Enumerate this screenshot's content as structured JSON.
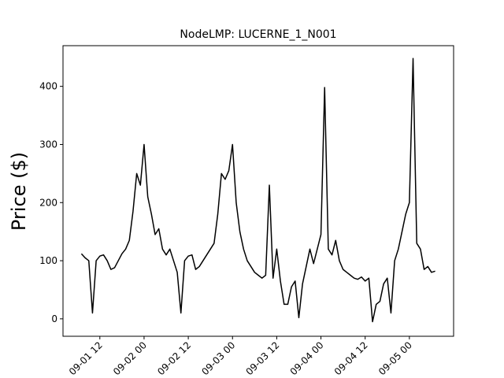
{
  "chart_data": {
    "type": "line",
    "title": "NodeLMP: LUCERNE_1_N001",
    "y_label": "Price ($)",
    "x": [
      "09-01 07",
      "09-01 08",
      "09-01 09",
      "09-01 10",
      "09-01 11",
      "09-01 12",
      "09-01 13",
      "09-01 14",
      "09-01 15",
      "09-01 16",
      "09-01 17",
      "09-01 18",
      "09-01 19",
      "09-01 20",
      "09-01 21",
      "09-01 22",
      "09-01 23",
      "09-02 00",
      "09-02 01",
      "09-02 02",
      "09-02 03",
      "09-02 04",
      "09-02 05",
      "09-02 06",
      "09-02 07",
      "09-02 08",
      "09-02 09",
      "09-02 10",
      "09-02 11",
      "09-02 12",
      "09-02 13",
      "09-02 14",
      "09-02 15",
      "09-02 16",
      "09-02 17",
      "09-02 18",
      "09-02 19",
      "09-02 20",
      "09-02 21",
      "09-02 22",
      "09-02 23",
      "09-03 00",
      "09-03 01",
      "09-03 02",
      "09-03 03",
      "09-03 04",
      "09-03 05",
      "09-03 06",
      "09-03 07",
      "09-03 08",
      "09-03 09",
      "09-03 10",
      "09-03 11",
      "09-03 12",
      "09-03 13",
      "09-03 14",
      "09-03 15",
      "09-03 16",
      "09-03 17",
      "09-03 18",
      "09-03 19",
      "09-03 20",
      "09-03 21",
      "09-03 22",
      "09-03 23",
      "09-04 00",
      "09-04 01",
      "09-04 02",
      "09-04 03",
      "09-04 04",
      "09-04 05",
      "09-04 06",
      "09-04 07",
      "09-04 08",
      "09-04 09",
      "09-04 10",
      "09-04 11",
      "09-04 12",
      "09-04 13",
      "09-04 14",
      "09-04 15",
      "09-04 16",
      "09-04 17",
      "09-04 18",
      "09-04 19",
      "09-04 20",
      "09-04 21",
      "09-04 22",
      "09-04 23",
      "09-05 00",
      "09-05 01",
      "09-05 02",
      "09-05 03",
      "09-05 04",
      "09-05 05",
      "09-05 06",
      "09-05 07"
    ],
    "series": [
      {
        "name": "LUCERNE_1_N001",
        "color": "#000000",
        "values": [
          112,
          105,
          100,
          10,
          100,
          108,
          110,
          100,
          85,
          88,
          100,
          112,
          120,
          135,
          185,
          250,
          230,
          300,
          210,
          180,
          145,
          155,
          120,
          110,
          120,
          100,
          80,
          10,
          100,
          108,
          110,
          85,
          90,
          100,
          110,
          120,
          130,
          180,
          250,
          240,
          255,
          300,
          200,
          150,
          120,
          100,
          90,
          80,
          75,
          70,
          75,
          230,
          70,
          120,
          65,
          25,
          25,
          55,
          65,
          2,
          60,
          90,
          120,
          95,
          120,
          145,
          398,
          120,
          110,
          135,
          100,
          85,
          80,
          75,
          70,
          68,
          72,
          65,
          70,
          -5,
          25,
          30,
          60,
          70,
          10,
          100,
          120,
          150,
          180,
          200,
          448,
          130,
          120,
          85,
          90,
          80,
          82
        ]
      }
    ],
    "xlim": [
      "09-01 02",
      "09-05 12"
    ],
    "xticks": [
      "09-01 12",
      "09-02 00",
      "09-02 12",
      "09-03 00",
      "09-03 12",
      "09-04 00",
      "09-04 12",
      "09-05 00"
    ],
    "ylim": [
      -30,
      470
    ],
    "yticks": [
      0,
      100,
      200,
      300,
      400
    ],
    "grid": false
  }
}
